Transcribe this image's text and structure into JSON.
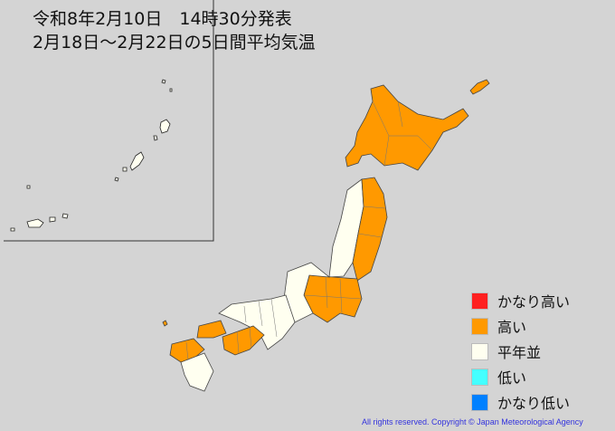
{
  "header": {
    "line1": "令和8年2月10日　14時30分発表",
    "line2": "2月18日～2月22日の5日間平均気温"
  },
  "legend": [
    {
      "label": "かなり高い",
      "color": "#ff2020"
    },
    {
      "label": "高い",
      "color": "#ff9900"
    },
    {
      "label": "平年並",
      "color": "#fffff0"
    },
    {
      "label": "低い",
      "color": "#44ffff"
    },
    {
      "label": "かなり低い",
      "color": "#0080ff"
    }
  ],
  "map": {
    "regions": [
      {
        "region": "hokkaido",
        "category": "高い"
      },
      {
        "region": "tohoku-pacific",
        "category": "高い"
      },
      {
        "region": "tohoku-japan-sea",
        "category": "平年並"
      },
      {
        "region": "kanto-koshin",
        "category": "高い"
      },
      {
        "region": "hokuriku-tokai",
        "category": "平年並"
      },
      {
        "region": "kinki",
        "category": "平年並"
      },
      {
        "region": "chugoku",
        "category": "高い"
      },
      {
        "region": "shikoku",
        "category": "高い"
      },
      {
        "region": "kyushu-north",
        "category": "高い"
      },
      {
        "region": "kyushu-south",
        "category": "平年並"
      },
      {
        "region": "okinawa",
        "category": "平年並"
      }
    ]
  },
  "footer": {
    "copyright": "All rights reserved. Copyright © Japan Meteorological Agency"
  }
}
